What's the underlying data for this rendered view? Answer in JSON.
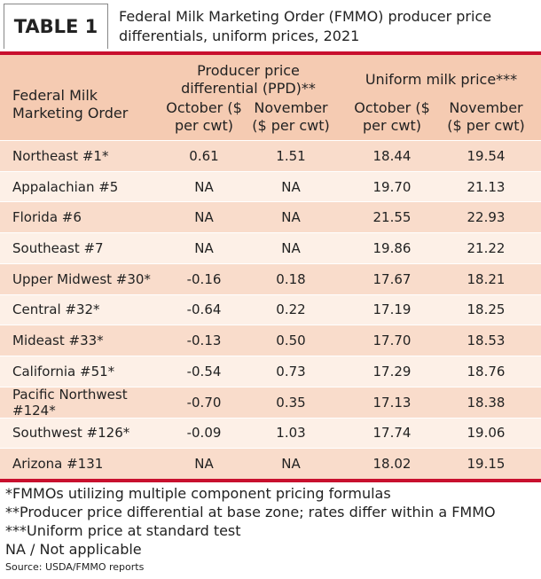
{
  "header": {
    "label": "TABLE 1",
    "title": "Federal Milk Marketing Order (FMMO) producer price differentials, uniform prices, 2021"
  },
  "table": {
    "group_headers": [
      "Producer price differential (PPD)**",
      "Uniform milk price***"
    ],
    "columns": [
      "Federal Milk Marketing Order",
      "October ($ per cwt)",
      "November ($ per cwt)",
      "October ($ per cwt)",
      "November ($ per cwt)"
    ],
    "rows": [
      [
        "Northeast #1*",
        "0.61",
        "1.51",
        "18.44",
        "19.54"
      ],
      [
        "Appalachian #5",
        "NA",
        "NA",
        "19.70",
        "21.13"
      ],
      [
        "Florida #6",
        "NA",
        "NA",
        "21.55",
        "22.93"
      ],
      [
        "Southeast #7",
        "NA",
        "NA",
        "19.86",
        "21.22"
      ],
      [
        "Upper Midwest #30*",
        "-0.16",
        "0.18",
        "17.67",
        "18.21"
      ],
      [
        "Central #32*",
        "-0.64",
        "0.22",
        "17.19",
        "18.25"
      ],
      [
        "Mideast #33*",
        "-0.13",
        "0.50",
        "17.70",
        "18.53"
      ],
      [
        "California #51*",
        "-0.54",
        "0.73",
        "17.29",
        "18.76"
      ],
      [
        "Pacific Northwest #124*",
        "-0.70",
        "0.35",
        "17.13",
        "18.38"
      ],
      [
        "Southwest #126*",
        "-0.09",
        "1.03",
        "17.74",
        "19.06"
      ],
      [
        "Arizona #131",
        "NA",
        "NA",
        "18.02",
        "19.15"
      ]
    ]
  },
  "footnotes": [
    "*FMMOs utilizing multiple component pricing formulas",
    "**Producer price differential at base zone; rates differ within a FMMO",
    "***Uniform price at standard test",
    "NA / Not applicable"
  ],
  "source": "Source: USDA/FMMO reports"
}
